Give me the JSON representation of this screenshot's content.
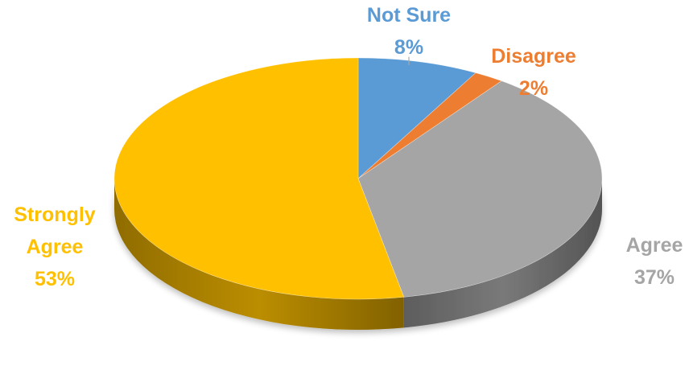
{
  "chart_data": {
    "type": "pie",
    "title": "",
    "slices": [
      {
        "name": "Not Sure",
        "label_lines": [
          "Not Sure"
        ],
        "value": 8,
        "display": "8%",
        "color": "#5B9BD5"
      },
      {
        "name": "Disagree",
        "label_lines": [
          "Disagree"
        ],
        "value": 2,
        "display": "2%",
        "color": "#ED7D31"
      },
      {
        "name": "Agree",
        "label_lines": [
          "Agree"
        ],
        "value": 37,
        "display": "37%",
        "color": "#A5A5A5"
      },
      {
        "name": "Strongly Agree",
        "label_lines": [
          "Strongly",
          "Agree"
        ],
        "value": 53,
        "display": "53%",
        "color": "#FFC000"
      }
    ],
    "start_angle_deg": 0,
    "direction": "clockwise",
    "style": "3d",
    "legend": "none"
  }
}
